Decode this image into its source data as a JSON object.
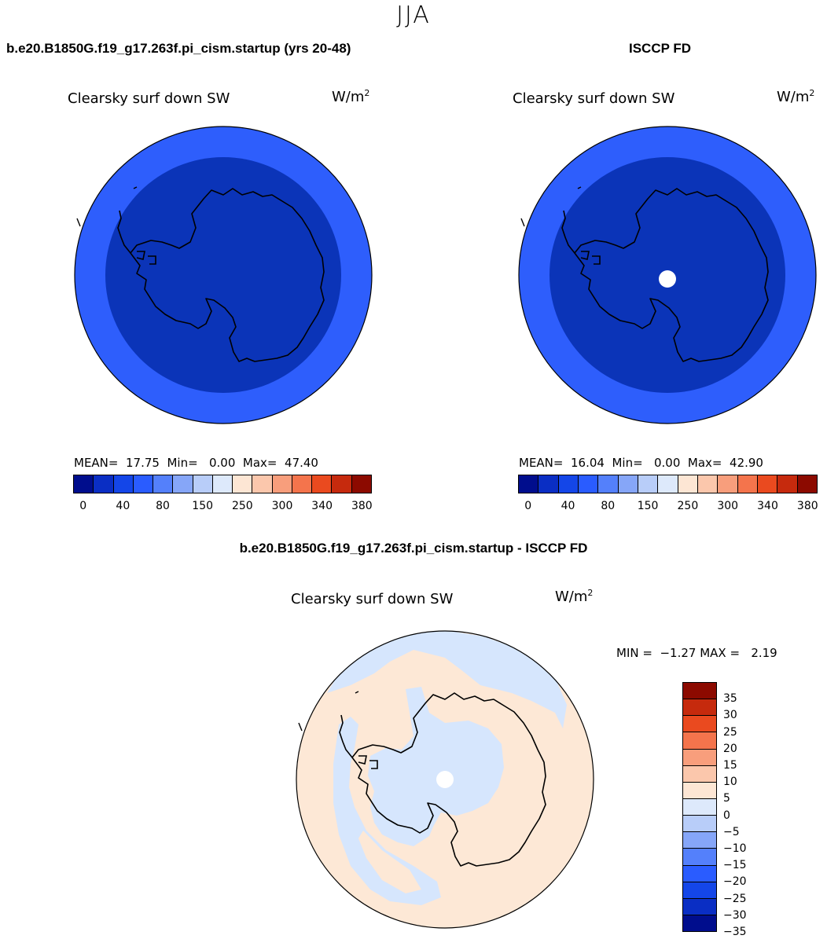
{
  "header": {
    "season": "JJA"
  },
  "panel_model": {
    "title": "b.e20.B1850G.f19_g17.263f.pi_cism.startup (yrs 20-48)",
    "variable": "Clearsky surf down SW",
    "units": "W/m",
    "units_exp": "2",
    "stats": "MEAN=  17.75  Min=   0.00  Max=  47.40",
    "ring_outer_color": "#2e5efc",
    "ring_inner_color": "#0b34b8",
    "has_pole_hole": false
  },
  "panel_obs": {
    "title": "ISCCP FD",
    "variable": "Clearsky surf down SW",
    "units": "W/m",
    "units_exp": "2",
    "stats": "MEAN=  16.04  Min=   0.00  Max=  42.90",
    "ring_outer_color": "#2e5efc",
    "ring_inner_color": "#0b34b8",
    "has_pole_hole": true
  },
  "panel_diff": {
    "title": "b.e20.B1850G.f19_g17.263f.pi_cism.startup - ISCCP FD",
    "variable": "Clearsky surf down SW",
    "units": "W/m",
    "units_exp": "2",
    "stats": "MIN =  −1.27 MAX =   2.19",
    "neg_color": "#d6e6fd",
    "pos_color": "#fde8d6"
  },
  "colorbar_abs": {
    "colors": [
      "#000d8d",
      "#0a2ec4",
      "#1446e8",
      "#2a5cff",
      "#5480fb",
      "#86a6f8",
      "#b8cdf9",
      "#dde9fb",
      "#fde6d4",
      "#fbc7ac",
      "#f89e7c",
      "#f4744c",
      "#ea4a1f",
      "#c62a0d",
      "#8c0a00"
    ],
    "tick_labels": [
      "0",
      "40",
      "80",
      "150",
      "250",
      "300",
      "340",
      "380"
    ]
  },
  "colorbar_diff": {
    "colors": [
      "#8c0a00",
      "#c62a0d",
      "#ea4a1f",
      "#f4744c",
      "#f89e7c",
      "#fbc7ac",
      "#fde6d4",
      "#dde9fb",
      "#b8cdf9",
      "#86a6f8",
      "#5480fb",
      "#2a5cff",
      "#1446e8",
      "#0a2ec4",
      "#000d8d"
    ],
    "tick_labels": [
      "35",
      "30",
      "25",
      "20",
      "15",
      "10",
      "5",
      "0",
      "−5",
      "−10",
      "−15",
      "−20",
      "−25",
      "−30",
      "−35"
    ]
  },
  "chart_data": [
    {
      "type": "map",
      "projection": "south-polar-stereographic",
      "title": "b.e20.B1850G.f19_g17.263f.pi_cism.startup (yrs 20-48)",
      "variable": "Clearsky surf down SW",
      "units": "W/m^2",
      "mean": 17.75,
      "min": 0.0,
      "max": 47.4
    },
    {
      "type": "map",
      "projection": "south-polar-stereographic",
      "title": "ISCCP FD",
      "variable": "Clearsky surf down SW",
      "units": "W/m^2",
      "mean": 16.04,
      "min": 0.0,
      "max": 42.9
    },
    {
      "type": "map",
      "projection": "south-polar-stereographic",
      "title": "b.e20.B1850G.f19_g17.263f.pi_cism.startup - ISCCP FD",
      "variable": "Clearsky surf down SW",
      "units": "W/m^2",
      "min": -1.27,
      "max": 2.19
    }
  ]
}
